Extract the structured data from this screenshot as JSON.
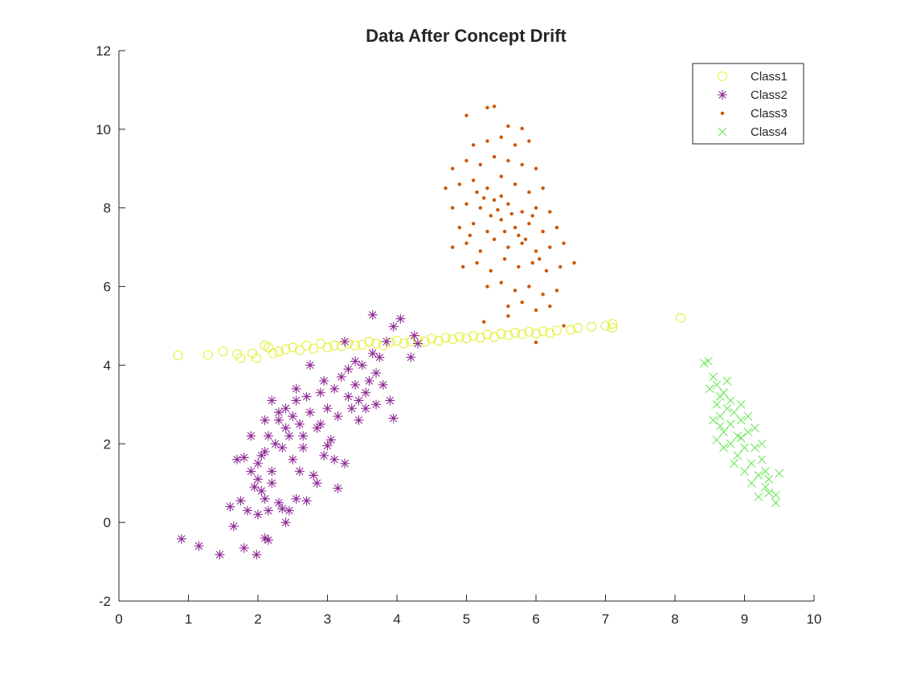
{
  "chart_data": {
    "type": "scatter",
    "title": "Data After Concept Drift",
    "xlabel": "",
    "ylabel": "",
    "xlim": [
      0,
      10
    ],
    "ylim": [
      -2,
      12
    ],
    "xticks": [
      0,
      1,
      2,
      3,
      4,
      5,
      6,
      7,
      8,
      9,
      10
    ],
    "yticks": [
      -2,
      0,
      2,
      4,
      6,
      8,
      10,
      12
    ],
    "grid": false,
    "legend_position": "top-right",
    "series": [
      {
        "name": "Class1",
        "marker": "circle",
        "color": "#E2F23C",
        "points": [
          [
            0.85,
            4.25
          ],
          [
            1.28,
            4.26
          ],
          [
            1.5,
            4.35
          ],
          [
            1.7,
            4.28
          ],
          [
            1.75,
            4.18
          ],
          [
            1.92,
            4.3
          ],
          [
            1.98,
            4.18
          ],
          [
            2.1,
            4.5
          ],
          [
            2.15,
            4.45
          ],
          [
            2.22,
            4.3
          ],
          [
            2.3,
            4.35
          ],
          [
            2.4,
            4.4
          ],
          [
            2.5,
            4.45
          ],
          [
            2.6,
            4.38
          ],
          [
            2.7,
            4.5
          ],
          [
            2.8,
            4.42
          ],
          [
            2.9,
            4.55
          ],
          [
            3.0,
            4.45
          ],
          [
            3.1,
            4.5
          ],
          [
            3.2,
            4.48
          ],
          [
            3.3,
            4.55
          ],
          [
            3.4,
            4.5
          ],
          [
            3.5,
            4.52
          ],
          [
            3.6,
            4.6
          ],
          [
            3.7,
            4.55
          ],
          [
            3.8,
            4.5
          ],
          [
            3.9,
            4.58
          ],
          [
            4.0,
            4.62
          ],
          [
            4.1,
            4.55
          ],
          [
            4.2,
            4.6
          ],
          [
            4.3,
            4.65
          ],
          [
            4.4,
            4.6
          ],
          [
            4.5,
            4.68
          ],
          [
            4.6,
            4.62
          ],
          [
            4.7,
            4.7
          ],
          [
            4.8,
            4.66
          ],
          [
            4.9,
            4.72
          ],
          [
            5.0,
            4.68
          ],
          [
            5.1,
            4.75
          ],
          [
            5.2,
            4.7
          ],
          [
            5.3,
            4.78
          ],
          [
            5.4,
            4.72
          ],
          [
            5.5,
            4.8
          ],
          [
            5.6,
            4.76
          ],
          [
            5.7,
            4.82
          ],
          [
            5.8,
            4.78
          ],
          [
            5.9,
            4.85
          ],
          [
            6.0,
            4.8
          ],
          [
            6.1,
            4.86
          ],
          [
            6.2,
            4.82
          ],
          [
            6.3,
            4.88
          ],
          [
            6.5,
            4.9
          ],
          [
            6.6,
            4.95
          ],
          [
            6.8,
            4.98
          ],
          [
            7.0,
            5.0
          ],
          [
            7.1,
            5.05
          ],
          [
            7.1,
            4.95
          ],
          [
            8.08,
            5.2
          ]
        ]
      },
      {
        "name": "Class2",
        "marker": "asterisk",
        "color": "#8E2A96",
        "points": [
          [
            0.9,
            -0.42
          ],
          [
            1.15,
            -0.6
          ],
          [
            1.45,
            -0.82
          ],
          [
            1.8,
            -0.65
          ],
          [
            1.98,
            -0.82
          ],
          [
            2.1,
            -0.4
          ],
          [
            2.15,
            -0.45
          ],
          [
            1.65,
            -0.1
          ],
          [
            1.75,
            0.55
          ],
          [
            1.85,
            0.3
          ],
          [
            2.0,
            0.2
          ],
          [
            2.05,
            0.8
          ],
          [
            2.1,
            0.6
          ],
          [
            2.2,
            1.0
          ],
          [
            2.3,
            0.5
          ],
          [
            2.4,
            0.0
          ],
          [
            2.45,
            0.3
          ],
          [
            2.55,
            0.6
          ],
          [
            1.7,
            1.6
          ],
          [
            1.8,
            1.65
          ],
          [
            1.9,
            2.2
          ],
          [
            2.0,
            1.5
          ],
          [
            2.1,
            1.8
          ],
          [
            2.15,
            2.2
          ],
          [
            2.2,
            1.3
          ],
          [
            2.3,
            2.6
          ],
          [
            2.35,
            1.9
          ],
          [
            2.4,
            2.9
          ],
          [
            2.45,
            2.2
          ],
          [
            2.5,
            1.6
          ],
          [
            2.55,
            3.1
          ],
          [
            2.6,
            2.5
          ],
          [
            2.65,
            1.9
          ],
          [
            2.7,
            3.2
          ],
          [
            2.75,
            2.8
          ],
          [
            2.8,
            1.2
          ],
          [
            2.85,
            2.4
          ],
          [
            2.9,
            3.3
          ],
          [
            2.95,
            1.7
          ],
          [
            3.0,
            2.9
          ],
          [
            3.05,
            2.1
          ],
          [
            3.1,
            3.4
          ],
          [
            3.15,
            2.7
          ],
          [
            3.2,
            3.7
          ],
          [
            3.25,
            1.5
          ],
          [
            3.3,
            3.9
          ],
          [
            3.35,
            2.9
          ],
          [
            3.4,
            3.5
          ],
          [
            3.45,
            3.1
          ],
          [
            3.5,
            4.0
          ],
          [
            3.55,
            3.3
          ],
          [
            3.6,
            3.6
          ],
          [
            3.65,
            4.3
          ],
          [
            3.7,
            3.0
          ],
          [
            3.75,
            4.2
          ],
          [
            3.8,
            3.5
          ],
          [
            3.85,
            4.6
          ],
          [
            3.9,
            3.1
          ],
          [
            3.95,
            2.65
          ],
          [
            3.25,
            4.6
          ],
          [
            3.65,
            5.28
          ],
          [
            4.05,
            5.18
          ],
          [
            3.95,
            4.98
          ],
          [
            4.2,
            4.2
          ],
          [
            4.3,
            4.55
          ],
          [
            4.25,
            4.75
          ],
          [
            2.75,
            4.0
          ],
          [
            2.2,
            3.1
          ],
          [
            2.4,
            2.4
          ],
          [
            2.6,
            1.3
          ],
          [
            2.85,
            1.0
          ],
          [
            3.15,
            0.87
          ],
          [
            2.7,
            0.55
          ],
          [
            2.35,
            0.35
          ],
          [
            2.15,
            0.3
          ],
          [
            1.95,
            0.9
          ],
          [
            1.6,
            0.4
          ],
          [
            1.9,
            1.3
          ],
          [
            2.05,
            1.7
          ],
          [
            2.25,
            2.0
          ],
          [
            2.5,
            2.7
          ],
          [
            2.65,
            2.2
          ],
          [
            2.9,
            2.5
          ],
          [
            3.0,
            1.95
          ],
          [
            3.1,
            1.6
          ],
          [
            3.3,
            3.2
          ],
          [
            3.45,
            2.6
          ],
          [
            3.55,
            2.9
          ],
          [
            3.7,
            3.8
          ],
          [
            3.4,
            4.1
          ],
          [
            2.95,
            3.6
          ],
          [
            2.55,
            3.4
          ],
          [
            2.3,
            2.8
          ],
          [
            2.1,
            2.6
          ],
          [
            2.0,
            1.1
          ]
        ]
      },
      {
        "name": "Class3",
        "marker": "dot",
        "color": "#CC5500",
        "points": [
          [
            5.0,
            10.35
          ],
          [
            5.3,
            10.55
          ],
          [
            5.4,
            10.58
          ],
          [
            5.6,
            10.08
          ],
          [
            5.8,
            10.02
          ],
          [
            5.1,
            9.6
          ],
          [
            5.3,
            9.7
          ],
          [
            5.5,
            9.8
          ],
          [
            5.7,
            9.6
          ],
          [
            5.9,
            9.7
          ],
          [
            4.8,
            9.0
          ],
          [
            5.0,
            9.2
          ],
          [
            5.2,
            9.1
          ],
          [
            5.4,
            9.3
          ],
          [
            5.6,
            9.2
          ],
          [
            5.8,
            9.1
          ],
          [
            6.0,
            9.0
          ],
          [
            4.7,
            8.5
          ],
          [
            4.9,
            8.6
          ],
          [
            5.1,
            8.7
          ],
          [
            5.3,
            8.5
          ],
          [
            5.5,
            8.8
          ],
          [
            5.7,
            8.6
          ],
          [
            5.9,
            8.4
          ],
          [
            6.1,
            8.5
          ],
          [
            4.8,
            8.0
          ],
          [
            5.0,
            8.1
          ],
          [
            5.2,
            8.0
          ],
          [
            5.4,
            8.2
          ],
          [
            5.6,
            8.1
          ],
          [
            5.8,
            7.9
          ],
          [
            6.0,
            8.0
          ],
          [
            6.2,
            7.9
          ],
          [
            4.9,
            7.5
          ],
          [
            5.1,
            7.6
          ],
          [
            5.3,
            7.4
          ],
          [
            5.5,
            7.7
          ],
          [
            5.7,
            7.5
          ],
          [
            5.9,
            7.6
          ],
          [
            6.1,
            7.4
          ],
          [
            6.3,
            7.5
          ],
          [
            4.8,
            7.0
          ],
          [
            5.0,
            7.1
          ],
          [
            5.2,
            6.9
          ],
          [
            5.4,
            7.2
          ],
          [
            5.6,
            7.0
          ],
          [
            5.8,
            7.1
          ],
          [
            6.0,
            6.9
          ],
          [
            6.2,
            7.0
          ],
          [
            6.4,
            7.1
          ],
          [
            4.95,
            6.5
          ],
          [
            5.15,
            6.6
          ],
          [
            5.35,
            6.4
          ],
          [
            5.55,
            6.7
          ],
          [
            5.75,
            6.5
          ],
          [
            5.95,
            6.6
          ],
          [
            6.15,
            6.4
          ],
          [
            6.35,
            6.5
          ],
          [
            6.55,
            6.6
          ],
          [
            5.3,
            6.0
          ],
          [
            5.5,
            6.1
          ],
          [
            5.7,
            5.9
          ],
          [
            5.9,
            6.0
          ],
          [
            6.1,
            5.8
          ],
          [
            6.3,
            5.9
          ],
          [
            5.6,
            5.5
          ],
          [
            5.8,
            5.6
          ],
          [
            6.0,
            5.4
          ],
          [
            6.2,
            5.5
          ],
          [
            5.25,
            5.1
          ],
          [
            5.6,
            5.25
          ],
          [
            6.4,
            5.0
          ],
          [
            6.0,
            4.58
          ],
          [
            5.5,
            8.3
          ],
          [
            5.65,
            7.85
          ],
          [
            5.45,
            7.95
          ],
          [
            5.75,
            7.3
          ],
          [
            5.35,
            7.8
          ],
          [
            5.85,
            7.2
          ],
          [
            5.25,
            8.25
          ],
          [
            5.95,
            7.8
          ],
          [
            5.55,
            7.4
          ],
          [
            5.15,
            8.4
          ],
          [
            6.05,
            6.7
          ],
          [
            5.05,
            7.3
          ]
        ]
      },
      {
        "name": "Class4",
        "marker": "x",
        "color": "#6DE85A",
        "points": [
          [
            8.42,
            4.05
          ],
          [
            8.48,
            4.1
          ],
          [
            8.55,
            3.7
          ],
          [
            8.6,
            3.5
          ],
          [
            8.65,
            3.2
          ],
          [
            8.5,
            3.4
          ],
          [
            8.6,
            3.0
          ],
          [
            8.7,
            3.3
          ],
          [
            8.75,
            2.9
          ],
          [
            8.55,
            2.6
          ],
          [
            8.65,
            2.7
          ],
          [
            8.8,
            2.5
          ],
          [
            8.85,
            2.8
          ],
          [
            8.7,
            2.3
          ],
          [
            8.9,
            2.2
          ],
          [
            8.95,
            2.6
          ],
          [
            8.8,
            2.0
          ],
          [
            9.0,
            1.9
          ],
          [
            9.05,
            2.3
          ],
          [
            8.9,
            1.7
          ],
          [
            9.1,
            1.5
          ],
          [
            9.15,
            1.9
          ],
          [
            9.0,
            1.3
          ],
          [
            9.2,
            1.2
          ],
          [
            9.25,
            1.6
          ],
          [
            9.1,
            1.0
          ],
          [
            9.3,
            0.9
          ],
          [
            9.2,
            0.65
          ],
          [
            9.35,
            0.75
          ],
          [
            9.45,
            0.7
          ],
          [
            9.45,
            0.5
          ],
          [
            9.5,
            1.25
          ],
          [
            8.6,
            2.1
          ],
          [
            8.75,
            3.6
          ],
          [
            8.8,
            3.1
          ],
          [
            8.95,
            3.0
          ],
          [
            9.05,
            2.7
          ],
          [
            9.15,
            2.4
          ],
          [
            9.25,
            2.0
          ],
          [
            9.3,
            1.3
          ],
          [
            8.85,
            1.5
          ],
          [
            8.7,
            1.9
          ],
          [
            9.35,
            1.1
          ],
          [
            8.95,
            2.15
          ],
          [
            8.65,
            2.45
          ]
        ]
      }
    ]
  }
}
